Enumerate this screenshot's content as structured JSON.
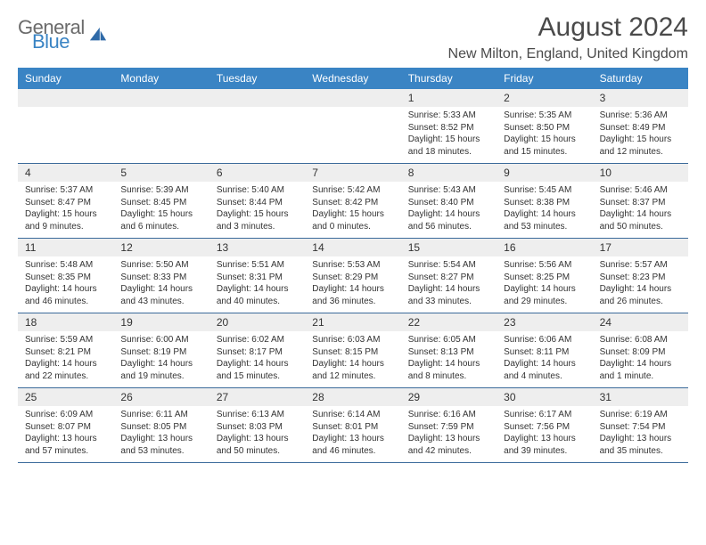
{
  "brand": {
    "general": "General",
    "blue": "Blue"
  },
  "title": "August 2024",
  "location": "New Milton, England, United Kingdom",
  "header_bg": "#3a84c4",
  "weekdays": [
    "Sunday",
    "Monday",
    "Tuesday",
    "Wednesday",
    "Thursday",
    "Friday",
    "Saturday"
  ],
  "weeks": [
    {
      "days": [
        {
          "num": "",
          "sunrise": "",
          "sunset": "",
          "daylight": ""
        },
        {
          "num": "",
          "sunrise": "",
          "sunset": "",
          "daylight": ""
        },
        {
          "num": "",
          "sunrise": "",
          "sunset": "",
          "daylight": ""
        },
        {
          "num": "",
          "sunrise": "",
          "sunset": "",
          "daylight": ""
        },
        {
          "num": "1",
          "sunrise": "Sunrise: 5:33 AM",
          "sunset": "Sunset: 8:52 PM",
          "daylight": "Daylight: 15 hours and 18 minutes."
        },
        {
          "num": "2",
          "sunrise": "Sunrise: 5:35 AM",
          "sunset": "Sunset: 8:50 PM",
          "daylight": "Daylight: 15 hours and 15 minutes."
        },
        {
          "num": "3",
          "sunrise": "Sunrise: 5:36 AM",
          "sunset": "Sunset: 8:49 PM",
          "daylight": "Daylight: 15 hours and 12 minutes."
        }
      ]
    },
    {
      "days": [
        {
          "num": "4",
          "sunrise": "Sunrise: 5:37 AM",
          "sunset": "Sunset: 8:47 PM",
          "daylight": "Daylight: 15 hours and 9 minutes."
        },
        {
          "num": "5",
          "sunrise": "Sunrise: 5:39 AM",
          "sunset": "Sunset: 8:45 PM",
          "daylight": "Daylight: 15 hours and 6 minutes."
        },
        {
          "num": "6",
          "sunrise": "Sunrise: 5:40 AM",
          "sunset": "Sunset: 8:44 PM",
          "daylight": "Daylight: 15 hours and 3 minutes."
        },
        {
          "num": "7",
          "sunrise": "Sunrise: 5:42 AM",
          "sunset": "Sunset: 8:42 PM",
          "daylight": "Daylight: 15 hours and 0 minutes."
        },
        {
          "num": "8",
          "sunrise": "Sunrise: 5:43 AM",
          "sunset": "Sunset: 8:40 PM",
          "daylight": "Daylight: 14 hours and 56 minutes."
        },
        {
          "num": "9",
          "sunrise": "Sunrise: 5:45 AM",
          "sunset": "Sunset: 8:38 PM",
          "daylight": "Daylight: 14 hours and 53 minutes."
        },
        {
          "num": "10",
          "sunrise": "Sunrise: 5:46 AM",
          "sunset": "Sunset: 8:37 PM",
          "daylight": "Daylight: 14 hours and 50 minutes."
        }
      ]
    },
    {
      "days": [
        {
          "num": "11",
          "sunrise": "Sunrise: 5:48 AM",
          "sunset": "Sunset: 8:35 PM",
          "daylight": "Daylight: 14 hours and 46 minutes."
        },
        {
          "num": "12",
          "sunrise": "Sunrise: 5:50 AM",
          "sunset": "Sunset: 8:33 PM",
          "daylight": "Daylight: 14 hours and 43 minutes."
        },
        {
          "num": "13",
          "sunrise": "Sunrise: 5:51 AM",
          "sunset": "Sunset: 8:31 PM",
          "daylight": "Daylight: 14 hours and 40 minutes."
        },
        {
          "num": "14",
          "sunrise": "Sunrise: 5:53 AM",
          "sunset": "Sunset: 8:29 PM",
          "daylight": "Daylight: 14 hours and 36 minutes."
        },
        {
          "num": "15",
          "sunrise": "Sunrise: 5:54 AM",
          "sunset": "Sunset: 8:27 PM",
          "daylight": "Daylight: 14 hours and 33 minutes."
        },
        {
          "num": "16",
          "sunrise": "Sunrise: 5:56 AM",
          "sunset": "Sunset: 8:25 PM",
          "daylight": "Daylight: 14 hours and 29 minutes."
        },
        {
          "num": "17",
          "sunrise": "Sunrise: 5:57 AM",
          "sunset": "Sunset: 8:23 PM",
          "daylight": "Daylight: 14 hours and 26 minutes."
        }
      ]
    },
    {
      "days": [
        {
          "num": "18",
          "sunrise": "Sunrise: 5:59 AM",
          "sunset": "Sunset: 8:21 PM",
          "daylight": "Daylight: 14 hours and 22 minutes."
        },
        {
          "num": "19",
          "sunrise": "Sunrise: 6:00 AM",
          "sunset": "Sunset: 8:19 PM",
          "daylight": "Daylight: 14 hours and 19 minutes."
        },
        {
          "num": "20",
          "sunrise": "Sunrise: 6:02 AM",
          "sunset": "Sunset: 8:17 PM",
          "daylight": "Daylight: 14 hours and 15 minutes."
        },
        {
          "num": "21",
          "sunrise": "Sunrise: 6:03 AM",
          "sunset": "Sunset: 8:15 PM",
          "daylight": "Daylight: 14 hours and 12 minutes."
        },
        {
          "num": "22",
          "sunrise": "Sunrise: 6:05 AM",
          "sunset": "Sunset: 8:13 PM",
          "daylight": "Daylight: 14 hours and 8 minutes."
        },
        {
          "num": "23",
          "sunrise": "Sunrise: 6:06 AM",
          "sunset": "Sunset: 8:11 PM",
          "daylight": "Daylight: 14 hours and 4 minutes."
        },
        {
          "num": "24",
          "sunrise": "Sunrise: 6:08 AM",
          "sunset": "Sunset: 8:09 PM",
          "daylight": "Daylight: 14 hours and 1 minute."
        }
      ]
    },
    {
      "days": [
        {
          "num": "25",
          "sunrise": "Sunrise: 6:09 AM",
          "sunset": "Sunset: 8:07 PM",
          "daylight": "Daylight: 13 hours and 57 minutes."
        },
        {
          "num": "26",
          "sunrise": "Sunrise: 6:11 AM",
          "sunset": "Sunset: 8:05 PM",
          "daylight": "Daylight: 13 hours and 53 minutes."
        },
        {
          "num": "27",
          "sunrise": "Sunrise: 6:13 AM",
          "sunset": "Sunset: 8:03 PM",
          "daylight": "Daylight: 13 hours and 50 minutes."
        },
        {
          "num": "28",
          "sunrise": "Sunrise: 6:14 AM",
          "sunset": "Sunset: 8:01 PM",
          "daylight": "Daylight: 13 hours and 46 minutes."
        },
        {
          "num": "29",
          "sunrise": "Sunrise: 6:16 AM",
          "sunset": "Sunset: 7:59 PM",
          "daylight": "Daylight: 13 hours and 42 minutes."
        },
        {
          "num": "30",
          "sunrise": "Sunrise: 6:17 AM",
          "sunset": "Sunset: 7:56 PM",
          "daylight": "Daylight: 13 hours and 39 minutes."
        },
        {
          "num": "31",
          "sunrise": "Sunrise: 6:19 AM",
          "sunset": "Sunset: 7:54 PM",
          "daylight": "Daylight: 13 hours and 35 minutes."
        }
      ]
    }
  ]
}
